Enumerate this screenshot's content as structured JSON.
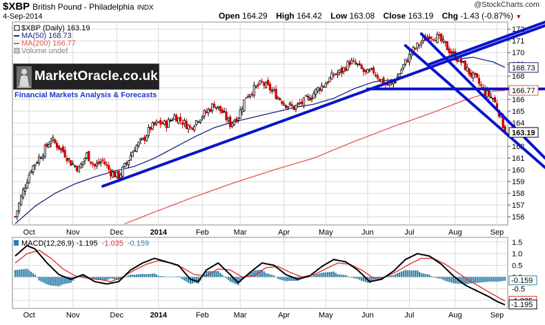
{
  "header": {
    "symbol": "$XBP",
    "name": "British Pound - Philadelphia",
    "exchange": "INDX",
    "date": "4-Sep-2014",
    "credit": "@StockCharts.com",
    "open_label": "Open",
    "open": "164.29",
    "high_label": "High",
    "high": "164.42",
    "low_label": "Low",
    "low": "163.08",
    "close_label": "Close",
    "close": "163.19",
    "chg_label": "Chg",
    "chg": "-1.43 (-0.87%)",
    "down_arrow": "▼"
  },
  "legend": {
    "main": "$XBP (Daily) 163.19",
    "ma50": "MA(50) 168.73",
    "ma200": "MA(200) 166.77",
    "volume": "Volume undef"
  },
  "logo": {
    "title": "MarketOracle.co.uk",
    "subtitle": "Financial Markets Analysis & Forecasts"
  },
  "colors": {
    "up": "#000000",
    "down": "#cc0000",
    "ma50": "#1a237e",
    "ma200": "#e05555",
    "trendline": "#0a14c8",
    "macd": "#000000",
    "signal": "#dd3333",
    "histogram": "#2e7fa8",
    "grid": "#d8d8d8"
  },
  "chart_data": [
    {
      "type": "candlestick",
      "title": "$XBP (Daily)",
      "x_ticks": [
        "Oct",
        "Nov",
        "Dec",
        "2014",
        "Feb",
        "Mar",
        "Apr",
        "May",
        "Jun",
        "Jul",
        "Aug",
        "Sep"
      ],
      "y_ticks": [
        156,
        157,
        158,
        159,
        160,
        161,
        162,
        163,
        164,
        165,
        166,
        167,
        168,
        169,
        170,
        171,
        172
      ],
      "ylim": [
        155.3,
        172.6
      ],
      "price_anchors": [
        [
          0,
          156.0
        ],
        [
          4,
          158.2
        ],
        [
          8,
          160.1
        ],
        [
          14,
          161.5
        ],
        [
          18,
          162.6
        ],
        [
          24,
          161.6
        ],
        [
          28,
          160.6
        ],
        [
          32,
          160.1
        ],
        [
          36,
          161.3
        ],
        [
          40,
          160.3
        ],
        [
          44,
          160.8
        ],
        [
          48,
          159.8
        ],
        [
          52,
          159.4
        ],
        [
          56,
          160.6
        ],
        [
          60,
          161.9
        ],
        [
          64,
          162.5
        ],
        [
          68,
          163.6
        ],
        [
          72,
          164.0
        ],
        [
          76,
          163.9
        ],
        [
          80,
          164.6
        ],
        [
          84,
          164.1
        ],
        [
          88,
          163.6
        ],
        [
          92,
          164.4
        ],
        [
          96,
          164.9
        ],
        [
          100,
          165.6
        ],
        [
          104,
          164.9
        ],
        [
          108,
          163.9
        ],
        [
          112,
          164.6
        ],
        [
          116,
          166.3
        ],
        [
          120,
          166.9
        ],
        [
          124,
          167.4
        ],
        [
          128,
          166.9
        ],
        [
          132,
          166.2
        ],
        [
          136,
          165.6
        ],
        [
          140,
          165.3
        ],
        [
          144,
          165.7
        ],
        [
          148,
          166.2
        ],
        [
          152,
          166.9
        ],
        [
          156,
          167.4
        ],
        [
          160,
          168.1
        ],
        [
          164,
          168.4
        ],
        [
          168,
          169.2
        ],
        [
          172,
          168.9
        ],
        [
          176,
          168.2
        ],
        [
          180,
          168.4
        ],
        [
          184,
          167.6
        ],
        [
          188,
          167.1
        ],
        [
          192,
          167.9
        ],
        [
          196,
          169.2
        ],
        [
          200,
          170.2
        ],
        [
          204,
          170.9
        ],
        [
          208,
          171.5
        ],
        [
          212,
          171.3
        ],
        [
          216,
          170.6
        ],
        [
          220,
          169.8
        ],
        [
          224,
          169.2
        ],
        [
          228,
          168.3
        ],
        [
          232,
          167.6
        ],
        [
          236,
          166.6
        ],
        [
          240,
          166.1
        ],
        [
          244,
          164.5
        ],
        [
          246,
          163.19
        ]
      ],
      "ma50": [
        [
          0,
          155.4
        ],
        [
          10,
          156.9
        ],
        [
          20,
          158.0
        ],
        [
          30,
          158.8
        ],
        [
          40,
          159.4
        ],
        [
          50,
          159.9
        ],
        [
          60,
          160.3
        ],
        [
          70,
          161.0
        ],
        [
          80,
          161.9
        ],
        [
          90,
          162.8
        ],
        [
          100,
          163.6
        ],
        [
          110,
          164.1
        ],
        [
          120,
          164.5
        ],
        [
          130,
          164.9
        ],
        [
          140,
          165.3
        ],
        [
          150,
          165.6
        ],
        [
          160,
          166.1
        ],
        [
          170,
          166.9
        ],
        [
          180,
          167.5
        ],
        [
          190,
          167.7
        ],
        [
          200,
          168.2
        ],
        [
          210,
          168.9
        ],
        [
          220,
          169.4
        ],
        [
          230,
          169.6
        ],
        [
          240,
          169.2
        ],
        [
          246,
          168.73
        ]
      ],
      "ma200": [
        [
          55,
          155.4
        ],
        [
          70,
          156.4
        ],
        [
          90,
          157.7
        ],
        [
          110,
          158.9
        ],
        [
          130,
          160.0
        ],
        [
          150,
          161.0
        ],
        [
          170,
          162.4
        ],
        [
          190,
          163.7
        ],
        [
          210,
          164.9
        ],
        [
          225,
          165.9
        ],
        [
          240,
          166.7
        ],
        [
          246,
          166.77
        ]
      ],
      "trendlines": [
        {
          "from": [
            44,
            158.6
          ],
          "to": [
            262,
            172.3
          ]
        },
        {
          "from": [
            177,
            166.9
          ],
          "to": [
            262,
            166.9
          ]
        },
        {
          "from": [
            204,
            171.6
          ],
          "to": [
            262,
            161.0
          ]
        },
        {
          "from": [
            196,
            170.6
          ],
          "to": [
            262,
            160.2
          ]
        },
        {
          "from": [
            208,
            169.0
          ],
          "to": [
            262,
            172.6
          ]
        }
      ],
      "right_axis_badges": [
        "168.73",
        "166.77",
        "163.19"
      ]
    },
    {
      "type": "line",
      "title": "MACD(12,26,9)",
      "legend": [
        "MACD(12,26,9) -1.195",
        "-1.035",
        "-0.159"
      ],
      "macd_value": "-1.195",
      "signal_value": "-1.035",
      "histogram_value": "-0.159",
      "x_ticks": [
        "Oct",
        "Nov",
        "Dec",
        "2014",
        "Feb",
        "Mar",
        "Apr",
        "May",
        "Jun",
        "Jul",
        "Aug",
        "Sep"
      ],
      "y_ticks": [
        "1.5",
        "1.0",
        "0.5",
        "0.0",
        "-0.5",
        "-1.0"
      ],
      "ylim": [
        -1.35,
        1.7
      ],
      "macd": [
        [
          0,
          0.9
        ],
        [
          6,
          1.35
        ],
        [
          10,
          1.2
        ],
        [
          16,
          0.6
        ],
        [
          22,
          0.1
        ],
        [
          28,
          -0.1
        ],
        [
          34,
          0.1
        ],
        [
          40,
          -0.2
        ],
        [
          46,
          -0.3
        ],
        [
          52,
          -0.2
        ],
        [
          58,
          0.3
        ],
        [
          64,
          0.6
        ],
        [
          70,
          0.8
        ],
        [
          76,
          0.65
        ],
        [
          82,
          0.5
        ],
        [
          88,
          -0.1
        ],
        [
          92,
          -0.2
        ],
        [
          96,
          0.3
        ],
        [
          102,
          0.6
        ],
        [
          108,
          0.1
        ],
        [
          112,
          -0.25
        ],
        [
          118,
          0.2
        ],
        [
          124,
          0.6
        ],
        [
          130,
          0.5
        ],
        [
          136,
          0.1
        ],
        [
          142,
          -0.1
        ],
        [
          148,
          0.05
        ],
        [
          154,
          0.45
        ],
        [
          160,
          0.75
        ],
        [
          166,
          0.65
        ],
        [
          172,
          0.3
        ],
        [
          178,
          -0.2
        ],
        [
          184,
          -0.1
        ],
        [
          190,
          0.25
        ],
        [
          196,
          0.75
        ],
        [
          202,
          1.0
        ],
        [
          208,
          0.9
        ],
        [
          214,
          0.55
        ],
        [
          220,
          0.05
        ],
        [
          226,
          -0.35
        ],
        [
          232,
          -0.6
        ],
        [
          238,
          -0.85
        ],
        [
          242,
          -1.05
        ],
        [
          246,
          -1.195
        ]
      ],
      "signal": [
        [
          0,
          0.6
        ],
        [
          6,
          1.0
        ],
        [
          12,
          1.15
        ],
        [
          18,
          0.8
        ],
        [
          24,
          0.35
        ],
        [
          30,
          0.05
        ],
        [
          36,
          -0.05
        ],
        [
          42,
          -0.1
        ],
        [
          48,
          -0.2
        ],
        [
          54,
          0.0
        ],
        [
          60,
          0.3
        ],
        [
          66,
          0.55
        ],
        [
          72,
          0.7
        ],
        [
          78,
          0.6
        ],
        [
          84,
          0.4
        ],
        [
          90,
          0.1
        ],
        [
          96,
          0.05
        ],
        [
          102,
          0.35
        ],
        [
          108,
          0.3
        ],
        [
          114,
          0.0
        ],
        [
          120,
          0.05
        ],
        [
          126,
          0.4
        ],
        [
          132,
          0.45
        ],
        [
          138,
          0.2
        ],
        [
          144,
          0.0
        ],
        [
          150,
          0.1
        ],
        [
          156,
          0.35
        ],
        [
          162,
          0.6
        ],
        [
          168,
          0.55
        ],
        [
          174,
          0.3
        ],
        [
          180,
          -0.05
        ],
        [
          186,
          0.0
        ],
        [
          192,
          0.25
        ],
        [
          198,
          0.55
        ],
        [
          204,
          0.8
        ],
        [
          210,
          0.8
        ],
        [
          216,
          0.55
        ],
        [
          222,
          0.2
        ],
        [
          228,
          -0.15
        ],
        [
          234,
          -0.45
        ],
        [
          240,
          -0.75
        ],
        [
          246,
          -1.035
        ]
      ],
      "histogram_note": "MACD minus signal, plotted as bars"
    }
  ]
}
